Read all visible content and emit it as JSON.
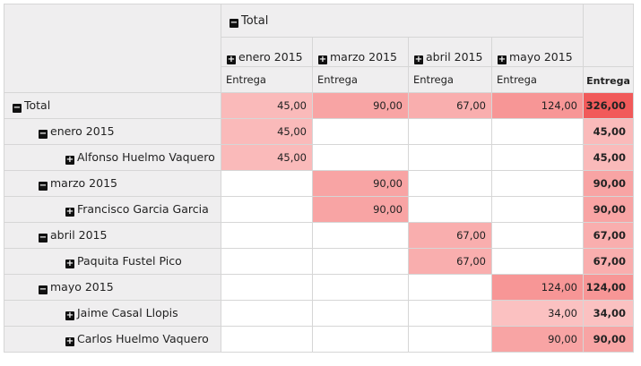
{
  "header": {
    "total_label": "Total",
    "months": [
      "enero 2015",
      "marzo 2015",
      "abril 2015",
      "mayo 2015"
    ],
    "measure_label": "Entrega",
    "total_measure_label": "Entrega"
  },
  "rows": [
    {
      "label": "Total",
      "level": 0,
      "toggle": "−",
      "values": [
        "45,00",
        "90,00",
        "67,00",
        "124,00"
      ],
      "total": "326,00"
    },
    {
      "label": "enero 2015",
      "level": 1,
      "toggle": "−",
      "values": [
        "45,00",
        "",
        "",
        ""
      ],
      "total": "45,00"
    },
    {
      "label": "Alfonso Huelmo Vaquero",
      "level": 2,
      "toggle": "+",
      "values": [
        "45,00",
        "",
        "",
        ""
      ],
      "total": "45,00"
    },
    {
      "label": "marzo 2015",
      "level": 1,
      "toggle": "−",
      "values": [
        "",
        "90,00",
        "",
        ""
      ],
      "total": "90,00"
    },
    {
      "label": "Francisco Garcia Garcia",
      "level": 2,
      "toggle": "+",
      "values": [
        "",
        "90,00",
        "",
        ""
      ],
      "total": "90,00"
    },
    {
      "label": "abril 2015",
      "level": 1,
      "toggle": "−",
      "values": [
        "",
        "",
        "67,00",
        ""
      ],
      "total": "67,00"
    },
    {
      "label": "Paquita Fustel Pico",
      "level": 2,
      "toggle": "+",
      "values": [
        "",
        "",
        "67,00",
        ""
      ],
      "total": "67,00"
    },
    {
      "label": "mayo 2015",
      "level": 1,
      "toggle": "−",
      "values": [
        "",
        "",
        "",
        "124,00"
      ],
      "total": "124,00"
    },
    {
      "label": "Jaime Casal Llopis",
      "level": 2,
      "toggle": "+",
      "values": [
        "",
        "",
        "",
        "34,00"
      ],
      "total": "34,00"
    },
    {
      "label": "Carlos Huelmo Vaquero",
      "level": 2,
      "toggle": "+",
      "values": [
        "",
        "",
        "",
        "90,00"
      ],
      "total": "90,00"
    }
  ],
  "colors": {
    "header_bg": "#efeeef",
    "grid": "#d6d6d6",
    "heat_max": "#f15a5a"
  }
}
